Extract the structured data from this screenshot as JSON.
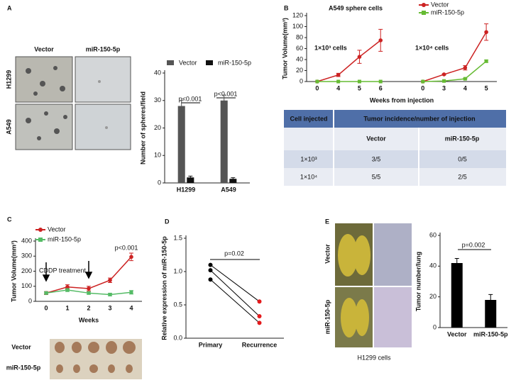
{
  "panel_labels": [
    "A",
    "B",
    "C",
    "D",
    "E"
  ],
  "photos": [
    {
      "columns": [
        "Vector",
        "miR-150-5p"
      ],
      "rows": [
        "H1299",
        "A549"
      ]
    },
    {
      "rows": [
        "Vector",
        "miR-150-5p"
      ]
    },
    {
      "rows": [
        "Vector",
        "miR-150-5p"
      ],
      "caption": "H1299 cells"
    }
  ],
  "table": {
    "header": [
      "Cell injected",
      "Tumor incidence/number of injection"
    ],
    "subheader": [
      "Vector",
      "miR-150-5p"
    ],
    "rows": [
      [
        "1×10³",
        "3/5",
        "0/5"
      ],
      [
        "1×10⁴",
        "5/5",
        "2/5"
      ]
    ]
  },
  "chart_data": [
    {
      "type": "bar",
      "y_label": "Number of spheres/field",
      "categories": [
        "H1299",
        "A549"
      ],
      "series": [
        {
          "name": "Vector",
          "color": "#555555",
          "values": [
            28,
            30
          ],
          "errors": [
            2,
            2
          ]
        },
        {
          "name": "miR-150-5p",
          "color": "#111111",
          "values": [
            2,
            1.5
          ],
          "errors": [
            0.5,
            0.4
          ]
        }
      ],
      "ylim": [
        0,
        40
      ],
      "yticks": [
        0,
        10,
        20,
        30,
        40
      ],
      "annotations": [
        "p<0.001",
        "p<0.001"
      ]
    },
    {
      "type": "line",
      "title": "A549 sphere cells",
      "y_label": "Tumor Volume(mm³)",
      "x_label": "Weeks from injection",
      "categories": [
        "0",
        "4",
        "5",
        "6",
        null,
        "0",
        "3",
        "4",
        "5"
      ],
      "series": [
        {
          "name": "Vector",
          "color": "#cc2222",
          "marker": "circle",
          "values": [
            0,
            12,
            45,
            75,
            null,
            0,
            13,
            25,
            90
          ],
          "errors": [
            0,
            3,
            12,
            20,
            null,
            0,
            1,
            4,
            15
          ]
        },
        {
          "name": "miR-150-5p",
          "color": "#66bb33",
          "marker": "square",
          "values": [
            0,
            0,
            0,
            0,
            null,
            0,
            1,
            5,
            37
          ],
          "errors": [
            0,
            0,
            0,
            0,
            null,
            0,
            0,
            1,
            2
          ]
        }
      ],
      "ylim": [
        0,
        120
      ],
      "yticks": [
        0,
        20,
        40,
        60,
        80,
        100,
        120
      ],
      "annotations": [
        "1×10³ cells",
        "1×10⁴ cells"
      ]
    },
    {
      "type": "line",
      "y_label": "Tumor Volume(mm³)",
      "x_label": "Weeks",
      "categories": [
        "0",
        "1",
        "2",
        "3",
        "4"
      ],
      "series": [
        {
          "name": "Vector",
          "color": "#cc2222",
          "marker": "circle",
          "values": [
            55,
            95,
            85,
            140,
            295
          ],
          "errors": [
            10,
            15,
            15,
            15,
            25
          ]
        },
        {
          "name": "miR-150-5p",
          "color": "#55bb66",
          "marker": "square",
          "values": [
            55,
            75,
            55,
            45,
            60
          ],
          "errors": [
            8,
            10,
            8,
            8,
            12
          ]
        }
      ],
      "ylim": [
        0,
        400
      ],
      "yticks": [
        0,
        100,
        200,
        300,
        400
      ],
      "annotations": [
        "CDDP treatment",
        "p<0.001"
      ]
    },
    {
      "type": "paired",
      "y_label": "Relative expression of miR-150-5p",
      "categories": [
        "Primary",
        "Recurrence"
      ],
      "point_colors": [
        "#000000",
        "#e41a1c"
      ],
      "series": [
        {
          "values": [
            1.1,
            0.55
          ]
        },
        {
          "values": [
            1.02,
            0.33
          ]
        },
        {
          "values": [
            0.88,
            0.23
          ]
        }
      ],
      "ylim": [
        0,
        1.5
      ],
      "yticks": [
        {
          "value": 0,
          "label": "0.0"
        },
        {
          "value": 0.5,
          "label": "0.5"
        },
        {
          "value": 1,
          "label": "1.0"
        },
        {
          "value": 1.5,
          "label": "1.5"
        }
      ],
      "annotations": [
        "p=0.02"
      ]
    },
    {
      "type": "bar",
      "y_label": "Tumor number/lung",
      "categories": [
        "Vector",
        "miR-150-5p"
      ],
      "series": [
        {
          "color": "#000000",
          "values": [
            42,
            18
          ],
          "errors": [
            3,
            3.5
          ]
        }
      ],
      "ylim": [
        0,
        60
      ],
      "yticks": [
        0,
        20,
        40,
        60
      ],
      "annotations": [
        "p=0.002"
      ]
    }
  ]
}
